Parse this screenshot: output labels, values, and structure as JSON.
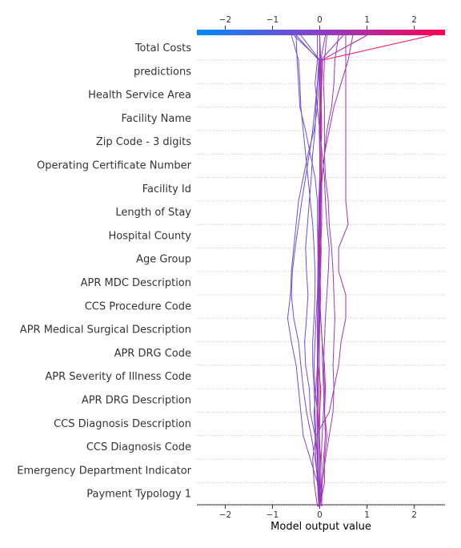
{
  "chart_data": {
    "type": "line",
    "xlabel": "Model output value",
    "ylabel": "",
    "xlim": [
      -2.6,
      2.65
    ],
    "xticks": [
      -2,
      -1,
      0,
      1,
      2
    ],
    "xtick_labels": [
      "−2",
      "−1",
      "0",
      "1",
      "2"
    ],
    "features": [
      "Total Costs",
      "predictions",
      "Health Service Area",
      "Facility Name",
      "Zip Code - 3 digits",
      "Operating Certificate Number",
      "Facility Id",
      "Length of Stay",
      "Hospital County",
      "Age Group",
      "APR MDC Description",
      "CCS Procedure Code",
      "APR Medical Surgical Description",
      "APR DRG Code",
      "APR Severity of Illness Code",
      "APR DRG Description",
      "CCS Diagnosis Description",
      "CCS Diagnosis Code",
      "Emergency Department Indicator",
      "Payment Typology 1"
    ],
    "colorbar": {
      "min_color": "#008bfb",
      "mid_color": "#8b3fc8",
      "max_color": "#ff0052"
    },
    "grid": "dotted horizontal",
    "series": [
      {
        "values": [
          0.05,
          0.04,
          0.03,
          0.02,
          -0.02,
          0.0,
          0.02,
          -0.03,
          -0.02,
          0.0,
          -0.04,
          -0.01,
          0.0,
          0.02,
          0.0,
          0.03,
          0.02,
          0.04,
          0.03,
          0.04,
          0.06
        ],
        "end_value": 2.38
      },
      {
        "values": [
          0.0,
          0.0,
          0.1,
          0.1,
          0.15,
          0.1,
          0.12,
          0.1,
          0.05,
          0.02,
          -0.01,
          0.0,
          0.02,
          0.04,
          0.04,
          0.04,
          0.03,
          0.02,
          0.02,
          0.03,
          0.04
        ],
        "end_value": 1.0
      },
      {
        "values": [
          0.03,
          0.04,
          0.05,
          0.08,
          0.12,
          0.1,
          0.08,
          0.06,
          0.05,
          0.02,
          0.0,
          0.02,
          0.03,
          0.01,
          0.02,
          0.01,
          0.0,
          0.01,
          0.02,
          0.01,
          0.02
        ],
        "end_value": 0.5
      },
      {
        "values": [
          0.0,
          0.0,
          0.0,
          0.0,
          -0.02,
          -0.05,
          -0.1,
          -0.12,
          -0.1,
          -0.08,
          -0.05,
          -0.04,
          -0.04,
          -0.02,
          -0.02,
          0.0,
          0.0,
          0.0,
          0.0,
          0.0,
          0.02
        ],
        "end_value": 0.0
      },
      {
        "values": [
          0.0,
          -0.02,
          -0.05,
          -0.08,
          -0.1,
          -0.12,
          -0.08,
          -0.05,
          -0.04,
          -0.03,
          -0.02,
          -0.02,
          -0.02,
          -0.01,
          -0.01,
          0.0,
          0.0,
          0.0,
          0.0,
          0.01,
          0.02
        ],
        "end_value": 0.12
      },
      {
        "values": [
          0.0,
          0.0,
          -0.02,
          -0.04,
          -0.1,
          -0.2,
          -0.22,
          -0.3,
          -0.32,
          -0.28,
          -0.25,
          -0.28,
          -0.3,
          -0.26,
          -0.22,
          -0.18,
          -0.15,
          -0.1,
          -0.08,
          -0.05,
          -0.02
        ],
        "end_value": -0.5
      },
      {
        "values": [
          0.0,
          0.0,
          -0.05,
          -0.2,
          -0.35,
          -0.4,
          -0.45,
          -0.5,
          -0.6,
          -0.68,
          -0.62,
          -0.6,
          -0.55,
          -0.5,
          -0.45,
          -0.35,
          -0.25,
          -0.12,
          -0.05,
          -0.02,
          0.0
        ],
        "end_value": -0.55
      },
      {
        "values": [
          0.02,
          0.0,
          -0.03,
          -0.1,
          -0.18,
          -0.28,
          -0.35,
          -0.4,
          -0.45,
          -0.55,
          -0.6,
          -0.58,
          -0.52,
          -0.45,
          -0.38,
          -0.3,
          -0.22,
          -0.15,
          -0.1,
          -0.05,
          0.0
        ],
        "end_value": -0.4
      },
      {
        "values": [
          0.0,
          -0.05,
          -0.12,
          -0.15,
          -0.08,
          0.2,
          0.3,
          0.4,
          0.45,
          0.55,
          0.55,
          0.4,
          0.4,
          0.6,
          0.55,
          0.55,
          0.55,
          0.55,
          0.55,
          0.55,
          0.55
        ],
        "end_value": 0.55
      },
      {
        "values": [
          0.0,
          0.0,
          0.05,
          0.12,
          0.2,
          0.28,
          0.3,
          0.28,
          0.3,
          0.32,
          0.3,
          0.28,
          0.25,
          0.2,
          0.18,
          0.12,
          0.1,
          0.1,
          0.1,
          0.08,
          0.1
        ],
        "end_value": 0.15
      },
      {
        "values": [
          0.0,
          0.0,
          0.02,
          0.03,
          0.05,
          0.08,
          0.1,
          0.08,
          0.1,
          0.12,
          0.15,
          0.18,
          0.2,
          0.15,
          0.12,
          0.1,
          0.05,
          0.0,
          -0.05,
          -0.1,
          -0.05
        ],
        "end_value": -0.05
      },
      {
        "values": [
          0.0,
          0.0,
          -0.02,
          -0.03,
          -0.05,
          -0.06,
          -0.05,
          -0.04,
          -0.03,
          -0.02,
          -0.02,
          -0.02,
          -0.04,
          -0.05,
          -0.05,
          -0.1,
          -0.2,
          -0.3,
          -0.42,
          -0.45,
          -0.48
        ],
        "end_value": -0.5
      },
      {
        "values": [
          0.0,
          0.0,
          -0.02,
          -0.05,
          -0.08,
          -0.1,
          -0.12,
          -0.15,
          -0.15,
          -0.12,
          -0.1,
          -0.1,
          -0.12,
          -0.15,
          -0.2,
          -0.25,
          -0.3,
          -0.35,
          -0.4,
          -0.42,
          -0.45
        ],
        "end_value": -0.6
      },
      {
        "values": [
          0.0,
          -0.02,
          -0.04,
          -0.05,
          -0.05,
          -0.06,
          -0.05,
          -0.04,
          -0.02,
          0.0,
          0.02,
          0.0,
          -0.02,
          0.0,
          0.02,
          0.05,
          0.1,
          0.2,
          0.3,
          0.45,
          0.6
        ],
        "end_value": 0.7
      },
      {
        "values": [
          0.0,
          0.0,
          0.0,
          0.0,
          -0.02,
          -0.03,
          -0.03,
          -0.03,
          -0.02,
          -0.01,
          0.0,
          0.0,
          0.02,
          0.02,
          0.02,
          0.0,
          0.0,
          -0.01,
          0.0,
          0.0,
          0.0
        ],
        "end_value": 0.0
      },
      {
        "values": [
          0.0,
          0.0,
          0.0,
          0.0,
          -0.02,
          -0.03,
          -0.04,
          -0.05,
          -0.05,
          -0.05,
          -0.04,
          -0.04,
          -0.03,
          -0.02,
          0.0,
          0.05,
          0.1,
          0.15,
          0.25,
          0.3,
          0.32
        ],
        "end_value": 0.4
      }
    ]
  }
}
